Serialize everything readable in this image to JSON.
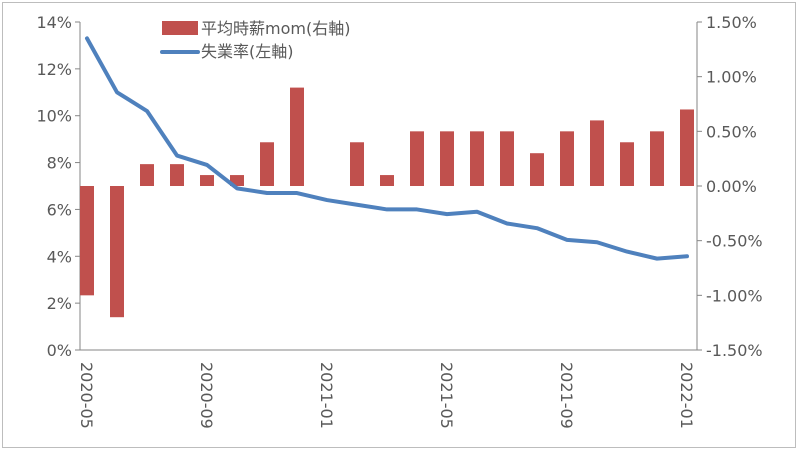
{
  "chart_data": {
    "type": "bar+line",
    "categories": [
      "2020-05",
      "2020-06",
      "2020-07",
      "2020-08",
      "2020-09",
      "2020-10",
      "2020-11",
      "2020-12",
      "2021-01",
      "2021-02",
      "2021-03",
      "2021-04",
      "2021-05",
      "2021-06",
      "2021-07",
      "2021-08",
      "2021-09",
      "2021-10",
      "2021-11",
      "2021-12",
      "2022-01"
    ],
    "x_tick_labels": [
      "2020-05",
      "2020-09",
      "2021-01",
      "2021-05",
      "2021-09",
      "2022-01"
    ],
    "series": [
      {
        "name": "平均時薪mom(右軸)",
        "type": "bar",
        "axis": "right",
        "color": "#c0504d",
        "values": [
          -1.0,
          -1.2,
          0.2,
          0.2,
          0.1,
          0.1,
          0.4,
          0.9,
          0.0,
          0.4,
          0.1,
          0.5,
          0.5,
          0.5,
          0.5,
          0.3,
          0.5,
          0.6,
          0.4,
          0.5,
          0.7
        ]
      },
      {
        "name": "失業率(左軸)",
        "type": "line",
        "axis": "left",
        "color": "#4f81bd",
        "values": [
          13.3,
          11.0,
          10.2,
          8.3,
          7.9,
          6.9,
          6.7,
          6.7,
          6.4,
          6.2,
          6.0,
          6.0,
          5.8,
          5.9,
          5.4,
          5.2,
          4.7,
          4.6,
          4.2,
          3.9,
          4.0
        ]
      }
    ],
    "left_axis": {
      "range": [
        0,
        14
      ],
      "ticks": [
        "0%",
        "2%",
        "4%",
        "6%",
        "8%",
        "10%",
        "12%",
        "14%"
      ]
    },
    "right_axis": {
      "range": [
        -1.5,
        1.5
      ],
      "ticks": [
        "-1.50%",
        "-1.00%",
        "-0.50%",
        "0.00%",
        "0.50%",
        "1.00%",
        "1.50%"
      ]
    },
    "grid": false,
    "legend_placement": "top-center"
  }
}
